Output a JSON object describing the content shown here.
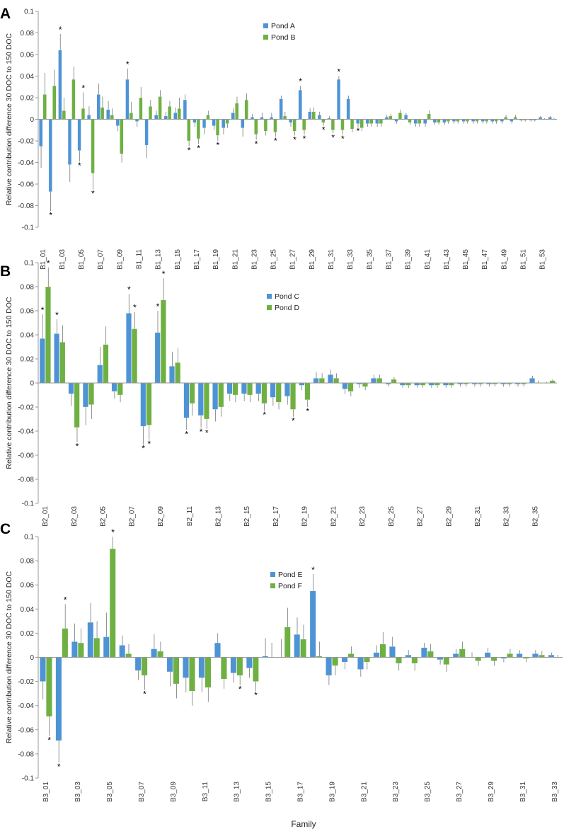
{
  "colors": {
    "series1": "#4e94d4",
    "series2": "#6fb043",
    "axis": "#999999",
    "error": "#666666"
  },
  "x_axis_title": "Family",
  "chart_data": [
    {
      "panel": "A",
      "type": "bar",
      "ylabel": "Relative contribution difference 30 DOC to 150 DOC",
      "ylim": [
        -0.1,
        0.1
      ],
      "yticks": [
        "0.1",
        "0.08",
        "0.06",
        "0.04",
        "0.02",
        "0",
        "-0.02",
        "-0.04",
        "-0.06",
        "-0.08",
        "-0.1"
      ],
      "legend_position": "top-center",
      "n_categories": 54,
      "tick_labels": [
        "B1_01",
        "B1_03",
        "B1_05",
        "B1_07",
        "B1_09",
        "B1_11",
        "B1_13",
        "B1_15",
        "B1_17",
        "B1_19",
        "B1_21",
        "B1_23",
        "B1_25",
        "B1_27",
        "B1_29",
        "B1_31",
        "B1_33",
        "B1_35",
        "B1_37",
        "B1_39",
        "B1_41",
        "B1_43",
        "B1_45",
        "B1_47",
        "B1_49",
        "B1_51",
        "B1_53"
      ],
      "series": [
        {
          "name": "Pond A",
          "values": [
            -0.025,
            -0.067,
            0.064,
            -0.042,
            -0.029,
            0.004,
            0.023,
            0.009,
            -0.006,
            0.037,
            -0.002,
            -0.024,
            0.004,
            0.003,
            0.006,
            0.018,
            -0.003,
            -0.008,
            -0.006,
            -0.008,
            0.006,
            -0.008,
            0.002,
            0.002,
            0.002,
            0.019,
            -0.003,
            0.027,
            0.007,
            0.004,
            0.001,
            0.037,
            0.019,
            -0.004,
            -0.004,
            -0.004,
            0.002,
            -0.002,
            0.004,
            -0.004,
            -0.004,
            -0.003,
            -0.003,
            -0.002,
            -0.002,
            -0.002,
            -0.002,
            -0.002,
            -0.002,
            -0.002,
            -0.001,
            -0.001,
            0.002,
            0.002
          ],
          "errors": [
            0.02,
            0.018,
            0.015,
            0.016,
            0.01,
            0.008,
            0.01,
            0.008,
            0.005,
            0.01,
            0.005,
            0.012,
            0.004,
            0.004,
            0.005,
            0.005,
            0.004,
            0.006,
            0.004,
            0.006,
            0.004,
            0.008,
            0.003,
            0.004,
            0.004,
            0.003,
            0.004,
            0.004,
            0.003,
            0.003,
            0.002,
            0.003,
            0.003,
            0.003,
            0.003,
            0.003,
            0.002,
            0.002,
            0.002,
            0.003,
            0.003,
            0.002,
            0.002,
            0.002,
            0.002,
            0.002,
            0.002,
            0.002,
            0.002,
            0.002,
            0.001,
            0.001,
            0.001,
            0.001
          ],
          "sig": [
            1,
            2,
            4,
            9,
            27,
            31,
            33
          ]
        },
        {
          "name": "Pond B",
          "values": [
            0.023,
            0.031,
            0.008,
            0.037,
            0.01,
            -0.05,
            0.011,
            0.004,
            -0.032,
            0.006,
            0.02,
            0.012,
            0.021,
            0.012,
            0.01,
            -0.02,
            -0.018,
            0.004,
            -0.015,
            -0.004,
            0.015,
            0.018,
            -0.014,
            -0.011,
            -0.012,
            0.003,
            -0.011,
            -0.01,
            0.007,
            -0.003,
            -0.01,
            -0.01,
            -0.009,
            -0.008,
            -0.004,
            -0.004,
            0.003,
            0.006,
            -0.003,
            -0.004,
            0.005,
            -0.003,
            -0.002,
            -0.002,
            -0.002,
            -0.002,
            -0.002,
            -0.002,
            0.002,
            0.002,
            -0.001,
            -0.001,
            0,
            0
          ],
          "errors": [
            0.02,
            0.015,
            0.012,
            0.012,
            0.015,
            0.015,
            0.01,
            0.006,
            0.008,
            0.01,
            0.01,
            0.006,
            0.006,
            0.005,
            0.01,
            0.005,
            0.005,
            0.004,
            0.005,
            0.004,
            0.006,
            0.006,
            0.005,
            0.004,
            0.004,
            0.004,
            0.004,
            0.004,
            0.004,
            0.003,
            0.003,
            0.004,
            0.003,
            0.003,
            0.003,
            0.003,
            0.002,
            0.003,
            0.002,
            0.003,
            0.003,
            0.002,
            0.002,
            0.002,
            0.002,
            0.002,
            0.002,
            0.002,
            0.002,
            0.002,
            0.001,
            0.001,
            0.001,
            0.001
          ],
          "sig": [
            4,
            5,
            15,
            16,
            18,
            22,
            24,
            26,
            27,
            29,
            30,
            31
          ]
        }
      ]
    },
    {
      "panel": "B",
      "type": "bar",
      "ylabel": "Relative contribution difference 30 DOC to 150 DOC",
      "ylim": [
        -0.1,
        0.1
      ],
      "yticks": [
        "0.1",
        "0.08",
        "0.06",
        "0.04",
        "0.02",
        "0",
        "-0.02",
        "-0.04",
        "-0.06",
        "-0.08",
        "-0.1"
      ],
      "legend_position": "top-center",
      "n_categories": 36,
      "tick_labels": [
        "B2_01",
        "B2_03",
        "B2_05",
        "B2_07",
        "B2_09",
        "B2_11",
        "B2_13",
        "B2_15",
        "B2_17",
        "B2_19",
        "B2_21",
        "B2_23",
        "B2_25",
        "B2_27",
        "B2_29",
        "B2_31",
        "B2_33",
        "B2_35"
      ],
      "series": [
        {
          "name": "Pond C",
          "values": [
            0.037,
            0.041,
            -0.009,
            -0.02,
            0.015,
            -0.007,
            0.058,
            -0.036,
            0.042,
            0.014,
            -0.029,
            -0.027,
            -0.022,
            -0.009,
            -0.009,
            -0.009,
            -0.012,
            -0.011,
            -0.002,
            0.004,
            0.007,
            -0.005,
            -0.001,
            0.004,
            -0.001,
            -0.002,
            -0.002,
            -0.002,
            -0.002,
            -0.001,
            -0.001,
            -0.001,
            -0.001,
            -0.001,
            0.004,
            0
          ],
          "errors": [
            0.02,
            0.012,
            0.01,
            0.015,
            0.015,
            0.006,
            0.016,
            0.015,
            0.018,
            0.012,
            0.01,
            0.01,
            0.01,
            0.006,
            0.006,
            0.006,
            0.007,
            0.007,
            0.004,
            0.005,
            0.004,
            0.004,
            0.003,
            0.003,
            0.002,
            0.002,
            0.002,
            0.002,
            0.002,
            0.002,
            0.002,
            0.002,
            0.002,
            0.002,
            0.002,
            0.001
          ],
          "sig": [
            0,
            1,
            6,
            7,
            8,
            10,
            11
          ]
        },
        {
          "name": "Pond D",
          "values": [
            0.08,
            0.034,
            -0.037,
            -0.018,
            0.032,
            -0.01,
            0.045,
            -0.035,
            0.069,
            0.017,
            -0.017,
            -0.03,
            -0.02,
            -0.01,
            -0.01,
            -0.017,
            -0.016,
            -0.022,
            -0.014,
            0.004,
            0.004,
            -0.007,
            -0.003,
            0.004,
            0.003,
            -0.002,
            -0.002,
            -0.002,
            -0.002,
            -0.001,
            -0.001,
            -0.001,
            -0.001,
            -0.001,
            0,
            0.002
          ],
          "errors": [
            0.016,
            0.014,
            0.012,
            0.012,
            0.015,
            0.006,
            0.014,
            0.012,
            0.018,
            0.012,
            0.01,
            0.008,
            0.008,
            0.006,
            0.006,
            0.006,
            0.006,
            0.006,
            0.006,
            0.004,
            0.004,
            0.004,
            0.003,
            0.003,
            0.002,
            0.002,
            0.002,
            0.002,
            0.002,
            0.002,
            0.002,
            0.002,
            0.002,
            0.002,
            0.002,
            0.001
          ],
          "sig": [
            0,
            2,
            6,
            7,
            8,
            11,
            15,
            17,
            18
          ]
        }
      ]
    },
    {
      "panel": "C",
      "type": "bar",
      "ylabel": "Relative contribution difference 30 DOC to 150 DOC",
      "ylim": [
        -0.1,
        0.1
      ],
      "yticks": [
        "0.1",
        "0.08",
        "0.06",
        "0.04",
        "0.02",
        "0",
        "-0.02",
        "-0.04",
        "-0.06",
        "-0.08",
        "-0.1"
      ],
      "legend_position": "top-center",
      "n_categories": 33,
      "tick_labels": [
        "B3_01",
        "B3_03",
        "B3_05",
        "B3_07",
        "B3_09",
        "B3_11",
        "B3_13",
        "B3_15",
        "B3_17",
        "B3_19",
        "B3_21",
        "B3_23",
        "B3_25",
        "B3_27",
        "B3_29",
        "B3_31",
        "B3_33"
      ],
      "series": [
        {
          "name": "Pond E",
          "values": [
            -0.02,
            -0.069,
            0.013,
            0.029,
            0.017,
            0.01,
            -0.011,
            0.007,
            -0.012,
            -0.017,
            -0.017,
            0.012,
            -0.013,
            -0.009,
            0.001,
            0,
            0.019,
            0.055,
            -0.015,
            -0.004,
            -0.01,
            0.004,
            0.009,
            0.002,
            0.008,
            -0.002,
            0.003,
            0,
            0.004,
            -0.001,
            0.003,
            0.003,
            0.002
          ],
          "errors": [
            0.015,
            0.018,
            0.015,
            0.016,
            0.02,
            0.008,
            0.008,
            0.012,
            0.012,
            0.012,
            0.012,
            0.008,
            0.008,
            0.008,
            0.015,
            0.015,
            0.014,
            0.014,
            0.008,
            0.006,
            0.006,
            0.006,
            0.008,
            0.004,
            0.004,
            0.004,
            0.004,
            0.004,
            0.004,
            0.003,
            0.003,
            0.003,
            0.002
          ],
          "sig": [
            1,
            17
          ]
        },
        {
          "name": "Pond F",
          "values": [
            -0.049,
            0.024,
            0.012,
            0.016,
            0.09,
            0.003,
            -0.015,
            0.005,
            -0.022,
            -0.028,
            -0.025,
            -0.018,
            -0.015,
            -0.02,
            0,
            0.025,
            0.015,
            0.001,
            -0.007,
            0.003,
            -0.004,
            0.011,
            -0.005,
            -0.005,
            0.005,
            -0.006,
            0.007,
            -0.003,
            -0.003,
            0.003,
            -0.001,
            0.002,
            0
          ],
          "errors": [
            0.016,
            0.02,
            0.012,
            0.014,
            0.01,
            0.008,
            0.012,
            0.008,
            0.012,
            0.012,
            0.012,
            0.008,
            0.008,
            0.008,
            0.012,
            0.016,
            0.012,
            0.012,
            0.008,
            0.006,
            0.006,
            0.01,
            0.006,
            0.006,
            0.006,
            0.006,
            0.006,
            0.004,
            0.004,
            0.004,
            0.003,
            0.003,
            0.002
          ],
          "sig": [
            0,
            1,
            4,
            6,
            12,
            13
          ]
        }
      ]
    }
  ]
}
